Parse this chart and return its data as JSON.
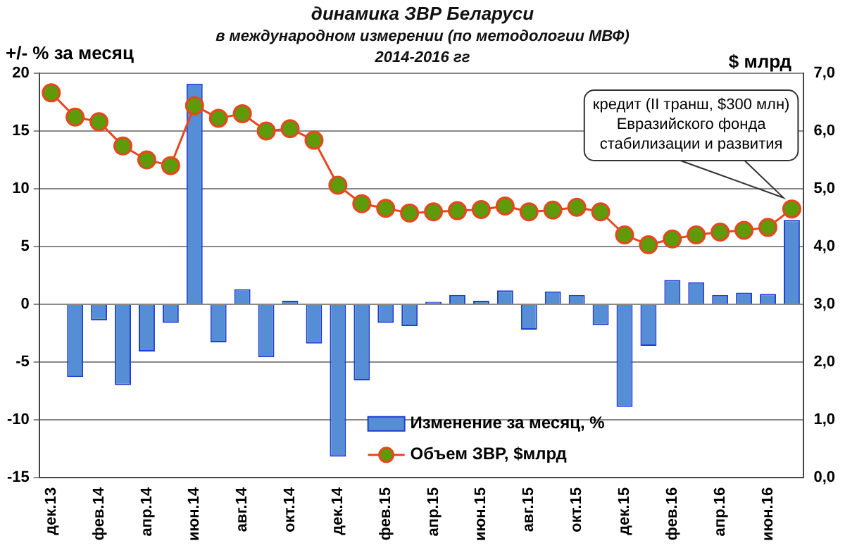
{
  "chart_data": {
    "type": "bar",
    "title": "динамика ЗВР Беларуси",
    "subtitle": "в международном измерении (по методологии МВФ)\n2014-2016 гг",
    "ylabel": "+/- % за месяц",
    "y2label": "$ млрд",
    "categories": [
      "дек.13",
      null,
      "фев.14",
      null,
      "апр.14",
      null,
      "июн.14",
      null,
      "авг.14",
      null,
      "окт.14",
      null,
      "дек.14",
      null,
      "фев.15",
      null,
      "апр.15",
      null,
      "июн.15",
      null,
      "авг.15",
      null,
      "окт.15",
      null,
      "дек.15",
      null,
      "фев.16",
      null,
      "апр.16",
      null,
      "июн.16",
      null
    ],
    "series": [
      {
        "name": "Изменение за месяц, %",
        "color": "#558ed5",
        "values": [
          null,
          -6.3,
          -1.4,
          -7.0,
          -4.1,
          -1.6,
          19.1,
          -3.3,
          1.3,
          -4.6,
          0.3,
          -3.4,
          -13.2,
          -6.6,
          -1.6,
          -1.9,
          0.2,
          0.8,
          0.3,
          1.2,
          -2.2,
          1.1,
          0.8,
          -1.8,
          -8.9,
          -3.6,
          2.1,
          1.9,
          0.8,
          1.0,
          0.9,
          7.3
        ]
      },
      {
        "name": "Объем ЗВР, $млрд",
        "type": "line",
        "axis": "y2",
        "color": "#e8461e",
        "values": [
          6.66,
          6.24,
          6.16,
          5.74,
          5.5,
          5.4,
          6.44,
          6.22,
          6.3,
          6.0,
          6.04,
          5.84,
          5.06,
          4.74,
          4.66,
          4.58,
          4.6,
          4.62,
          4.64,
          4.7,
          4.6,
          4.63,
          4.68,
          4.6,
          4.2,
          4.03,
          4.13,
          4.2,
          4.25,
          4.28,
          4.33,
          4.65
        ]
      }
    ],
    "ylim": [
      -15,
      20
    ],
    "yticks": [
      -15,
      -10,
      -5,
      0,
      5,
      10,
      15,
      20
    ],
    "y2lim": [
      0,
      7
    ],
    "y2ticks": [
      {
        "value": 0,
        "label": "0,0"
      },
      {
        "value": 1,
        "label": "1,0"
      },
      {
        "value": 2,
        "label": "2,0"
      },
      {
        "value": 3,
        "label": "3,0"
      },
      {
        "value": 4,
        "label": "4,0"
      },
      {
        "value": 5,
        "label": "5,0"
      },
      {
        "value": 6,
        "label": "6,0"
      },
      {
        "value": 7,
        "label": "7,0"
      }
    ],
    "annotations": [
      "кредит (II транш, $300 млн)\nЕвразийского фонда\nстабилизации и развития"
    ],
    "grid": "y",
    "legend": "bottom",
    "marker": "circle",
    "line_style": "solid"
  }
}
